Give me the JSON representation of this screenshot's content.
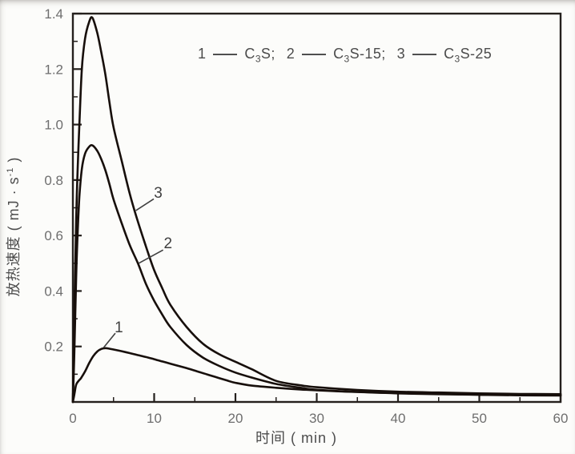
{
  "figure": {
    "background": "#fcfcfa",
    "curve_color": "#170f0b",
    "axis_color": "#25201d",
    "tick_label_color": "#6e6e6e",
    "annotation_color": "#3f3f3f"
  },
  "chart_data": {
    "type": "line",
    "title": "",
    "xlabel": "时间 ( min )",
    "ylabel_pre": "放热速度 ( mJ · s",
    "ylabel_sup": "-1",
    "ylabel_post": " )",
    "xlim": [
      0,
      60
    ],
    "ylim": [
      0,
      1.4
    ],
    "grid": false,
    "legend_position": "top-inside",
    "x_major_ticks": [
      {
        "v": 0,
        "label": "0"
      },
      {
        "v": 10,
        "label": "10"
      },
      {
        "v": 20,
        "label": "20"
      },
      {
        "v": 30,
        "label": "30"
      },
      {
        "v": 40,
        "label": "40"
      },
      {
        "v": 50,
        "label": "50"
      },
      {
        "v": 60,
        "label": "60"
      }
    ],
    "x_minor_ticks": [
      5,
      15,
      25,
      35,
      45,
      55
    ],
    "y_major_ticks": [
      {
        "v": 0.2,
        "label": "0.2"
      },
      {
        "v": 0.4,
        "label": "0.4"
      },
      {
        "v": 0.6,
        "label": "0.6"
      },
      {
        "v": 0.8,
        "label": "0.8"
      },
      {
        "v": 1.0,
        "label": "1.0"
      },
      {
        "v": 1.2,
        "label": "1.2"
      },
      {
        "v": 1.4,
        "label": "1.4"
      }
    ],
    "y_minor_ticks": [
      0.1,
      0.3,
      0.5,
      0.7,
      0.9,
      1.1,
      1.3
    ],
    "series": [
      {
        "name": "C3S",
        "curve_label": "1",
        "x": [
          0,
          0.2,
          0.4,
          0.7,
          1,
          1.5,
          2,
          2.5,
          3,
          3.5,
          4,
          4.5,
          5,
          6,
          7,
          8,
          9,
          10,
          11,
          12,
          13,
          14,
          15,
          16,
          17,
          18,
          19,
          20,
          22,
          25,
          28,
          30,
          35,
          40,
          45,
          50,
          55,
          60
        ],
        "y": [
          0,
          0.03,
          0.062,
          0.076,
          0.086,
          0.11,
          0.14,
          0.165,
          0.182,
          0.191,
          0.194,
          0.192,
          0.189,
          0.183,
          0.176,
          0.169,
          0.162,
          0.154,
          0.146,
          0.138,
          0.13,
          0.122,
          0.113,
          0.104,
          0.095,
          0.086,
          0.077,
          0.069,
          0.059,
          0.051,
          0.045,
          0.042,
          0.036,
          0.032,
          0.029,
          0.026,
          0.024,
          0.023
        ]
      },
      {
        "name": "C3S-15",
        "curve_label": "2",
        "x": [
          0,
          0.2,
          0.4,
          0.6,
          0.8,
          1.1,
          1.5,
          2,
          2.4,
          3,
          3.5,
          4,
          4.5,
          5,
          6,
          7,
          8,
          9,
          10,
          11,
          12,
          14,
          16,
          18,
          20,
          22,
          25,
          28,
          30,
          35,
          40,
          45,
          50,
          55,
          60
        ],
        "y": [
          0,
          0.2,
          0.45,
          0.62,
          0.74,
          0.84,
          0.895,
          0.92,
          0.925,
          0.905,
          0.875,
          0.835,
          0.785,
          0.73,
          0.645,
          0.565,
          0.5,
          0.425,
          0.365,
          0.315,
          0.27,
          0.205,
          0.16,
          0.13,
          0.106,
          0.088,
          0.065,
          0.051,
          0.044,
          0.036,
          0.031,
          0.028,
          0.026,
          0.025,
          0.024
        ]
      },
      {
        "name": "C3S-25",
        "curve_label": "3",
        "x": [
          0,
          0.2,
          0.4,
          0.6,
          0.8,
          1.1,
          1.5,
          2,
          2.4,
          3,
          3.5,
          4,
          4.5,
          5,
          6,
          7,
          8,
          9,
          10,
          11,
          12,
          14,
          16,
          18,
          20,
          22,
          25,
          28,
          30,
          35,
          40,
          45,
          50,
          55,
          60
        ],
        "y": [
          0,
          0.35,
          0.65,
          0.85,
          1.0,
          1.2,
          1.31,
          1.37,
          1.385,
          1.33,
          1.26,
          1.18,
          1.08,
          0.99,
          0.87,
          0.75,
          0.65,
          0.56,
          0.475,
          0.41,
          0.35,
          0.27,
          0.21,
          0.172,
          0.145,
          0.118,
          0.076,
          0.06,
          0.053,
          0.043,
          0.037,
          0.034,
          0.031,
          0.029,
          0.028
        ]
      }
    ],
    "annotations": [
      {
        "text": "1",
        "tx": 5.66,
        "ty": 0.272,
        "leader": [
          5.22,
          0.248,
          3.78,
          0.196
        ]
      },
      {
        "text": "2",
        "tx": 11.7,
        "ty": 0.575,
        "leader": [
          11.1,
          0.548,
          8.1,
          0.5
        ]
      },
      {
        "text": "3",
        "tx": 10.5,
        "ty": 0.757,
        "leader": [
          9.95,
          0.732,
          7.75,
          0.69
        ]
      }
    ],
    "legend": {
      "items": [
        {
          "index": "1",
          "formula_base": "C",
          "formula_sub": "3",
          "formula_post": "S",
          "punct": ";"
        },
        {
          "index": "2",
          "formula_base": "C",
          "formula_sub": "3",
          "formula_post": "S-15",
          "punct": ";"
        },
        {
          "index": "3",
          "formula_base": "C",
          "formula_sub": "3",
          "formula_post": "S-25",
          "punct": ""
        }
      ]
    }
  }
}
